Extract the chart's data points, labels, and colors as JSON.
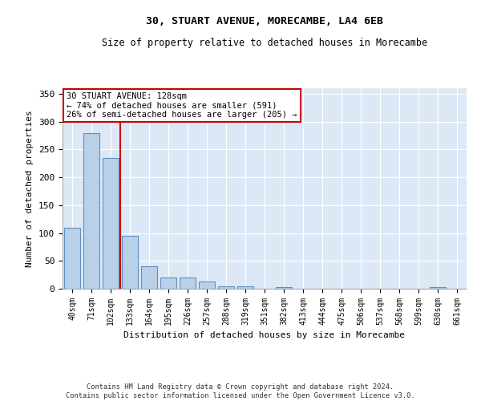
{
  "title1": "30, STUART AVENUE, MORECAMBE, LA4 6EB",
  "title2": "Size of property relative to detached houses in Morecambe",
  "xlabel": "Distribution of detached houses by size in Morecambe",
  "ylabel": "Number of detached properties",
  "bar_labels": [
    "40sqm",
    "71sqm",
    "102sqm",
    "133sqm",
    "164sqm",
    "195sqm",
    "226sqm",
    "257sqm",
    "288sqm",
    "319sqm",
    "351sqm",
    "382sqm",
    "413sqm",
    "444sqm",
    "475sqm",
    "506sqm",
    "537sqm",
    "568sqm",
    "599sqm",
    "630sqm",
    "661sqm"
  ],
  "bar_values": [
    110,
    280,
    235,
    95,
    40,
    20,
    20,
    13,
    5,
    4,
    0,
    3,
    0,
    0,
    0,
    0,
    0,
    0,
    0,
    3,
    0
  ],
  "bar_color": "#b8d0e8",
  "bar_edge_color": "#6090c0",
  "annotation_line1": "30 STUART AVENUE: 128sqm",
  "annotation_line2": "← 74% of detached houses are smaller (591)",
  "annotation_line3": "26% of semi-detached houses are larger (205) →",
  "red_line_color": "#cc0000",
  "ylim": [
    0,
    360
  ],
  "yticks": [
    0,
    50,
    100,
    150,
    200,
    250,
    300,
    350
  ],
  "footer_line1": "Contains HM Land Registry data © Crown copyright and database right 2024.",
  "footer_line2": "Contains public sector information licensed under the Open Government Licence v3.0.",
  "plot_bg_color": "#dce8f5"
}
